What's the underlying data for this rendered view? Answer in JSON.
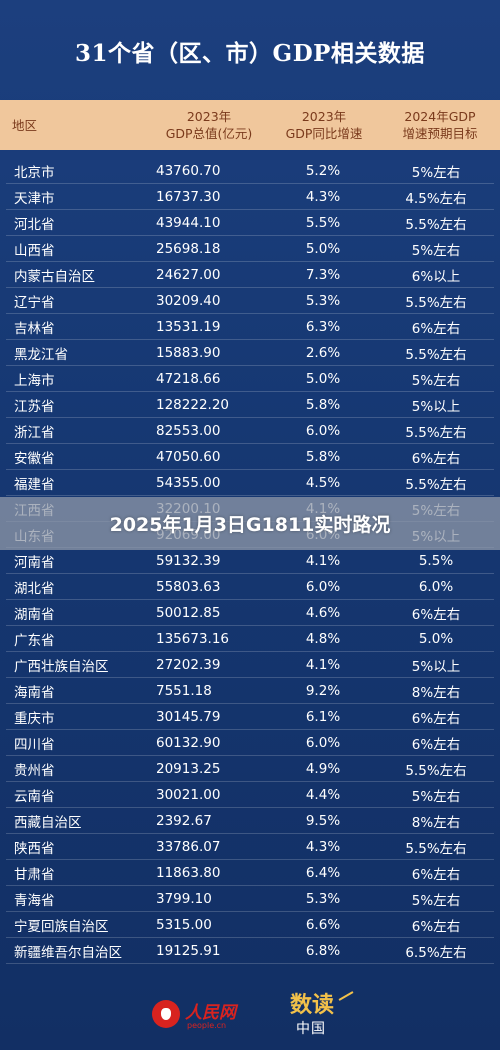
{
  "title": "31个省（区、市）GDP相关数据",
  "headers": {
    "region": "地区",
    "gdp": [
      "2023年",
      "GDP总值(亿元)"
    ],
    "growth": [
      "2023年",
      "GDP同比增速"
    ],
    "target": [
      "2024年GDP",
      "增速预期目标"
    ]
  },
  "rows": [
    {
      "region": "北京市",
      "gdp": "43760.70",
      "growth": "5.2%",
      "target": "5%左右"
    },
    {
      "region": "天津市",
      "gdp": "16737.30",
      "growth": "4.3%",
      "target": "4.5%左右"
    },
    {
      "region": "河北省",
      "gdp": "43944.10",
      "growth": "5.5%",
      "target": "5.5%左右"
    },
    {
      "region": "山西省",
      "gdp": "25698.18",
      "growth": "5.0%",
      "target": "5%左右"
    },
    {
      "region": "内蒙古自治区",
      "gdp": "24627.00",
      "growth": "7.3%",
      "target": "6%以上"
    },
    {
      "region": "辽宁省",
      "gdp": "30209.40",
      "growth": "5.3%",
      "target": "5.5%左右"
    },
    {
      "region": "吉林省",
      "gdp": "13531.19",
      "growth": "6.3%",
      "target": "6%左右"
    },
    {
      "region": "黑龙江省",
      "gdp": "15883.90",
      "growth": "2.6%",
      "target": "5.5%左右"
    },
    {
      "region": "上海市",
      "gdp": "47218.66",
      "growth": "5.0%",
      "target": "5%左右"
    },
    {
      "region": "江苏省",
      "gdp": "128222.20",
      "growth": "5.8%",
      "target": "5%以上"
    },
    {
      "region": "浙江省",
      "gdp": "82553.00",
      "growth": "6.0%",
      "target": "5.5%左右"
    },
    {
      "region": "安徽省",
      "gdp": "47050.60",
      "growth": "5.8%",
      "target": "6%左右"
    },
    {
      "region": "福建省",
      "gdp": "54355.00",
      "growth": "4.5%",
      "target": "5.5%左右"
    },
    {
      "region": "江西省",
      "gdp": "32200.10",
      "growth": "4.1%",
      "target": "5%左右"
    },
    {
      "region": "山东省",
      "gdp": "92069.00",
      "growth": "6.0%",
      "target": "5%以上"
    },
    {
      "region": "河南省",
      "gdp": "59132.39",
      "growth": "4.1%",
      "target": "5.5%"
    },
    {
      "region": "湖北省",
      "gdp": "55803.63",
      "growth": "6.0%",
      "target": "6.0%"
    },
    {
      "region": "湖南省",
      "gdp": "50012.85",
      "growth": "4.6%",
      "target": "6%左右"
    },
    {
      "region": "广东省",
      "gdp": "135673.16",
      "growth": "4.8%",
      "target": "5.0%"
    },
    {
      "region": "广西壮族自治区",
      "gdp": "27202.39",
      "growth": "4.1%",
      "target": "5%以上"
    },
    {
      "region": "海南省",
      "gdp": "7551.18",
      "growth": "9.2%",
      "target": "8%左右"
    },
    {
      "region": "重庆市",
      "gdp": "30145.79",
      "growth": "6.1%",
      "target": "6%左右"
    },
    {
      "region": "四川省",
      "gdp": "60132.90",
      "growth": "6.0%",
      "target": "6%左右"
    },
    {
      "region": "贵州省",
      "gdp": "20913.25",
      "growth": "4.9%",
      "target": "5.5%左右"
    },
    {
      "region": "云南省",
      "gdp": "30021.00",
      "growth": "4.4%",
      "target": "5%左右"
    },
    {
      "region": "西藏自治区",
      "gdp": "2392.67",
      "growth": "9.5%",
      "target": "8%左右"
    },
    {
      "region": "陕西省",
      "gdp": "33786.07",
      "growth": "4.3%",
      "target": "5.5%左右"
    },
    {
      "region": "甘肃省",
      "gdp": "11863.80",
      "growth": "6.4%",
      "target": "6%左右"
    },
    {
      "region": "青海省",
      "gdp": "3799.10",
      "growth": "5.3%",
      "target": "5%左右"
    },
    {
      "region": "宁夏回族自治区",
      "gdp": "5315.00",
      "growth": "6.6%",
      "target": "6%左右"
    },
    {
      "region": "新疆维吾尔自治区",
      "gdp": "19125.91",
      "growth": "6.8%",
      "target": "6.5%左右"
    }
  ],
  "overlay_text": "2025年1月3日G1811实时路况",
  "footer": {
    "logo1_name": "人民网",
    "logo1_url": "people.cn",
    "logo2_big": "数读",
    "logo2_small": "中国"
  },
  "colors": {
    "background": "#163873",
    "header_bg": "#f0c79c",
    "header_text": "#7a3a1c",
    "brand_red": "#d8231f",
    "brand_gold": "#f2c14a"
  }
}
